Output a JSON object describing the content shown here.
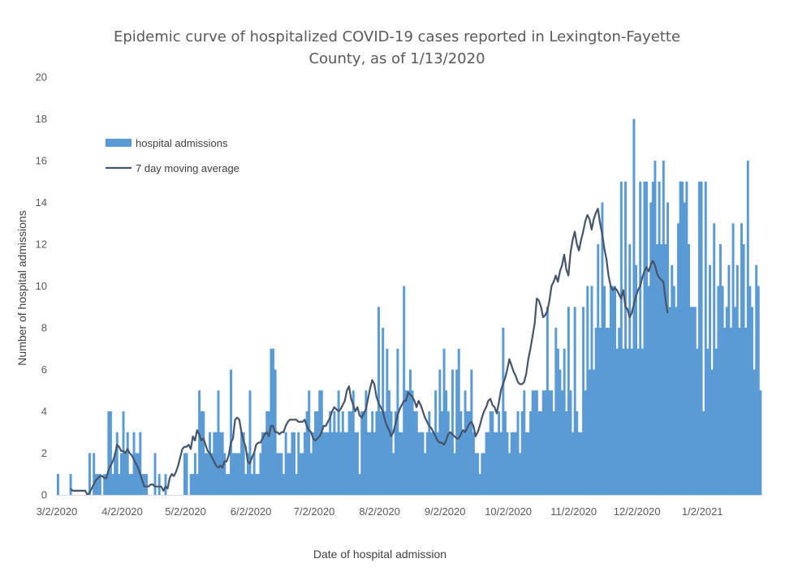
{
  "chart_data": {
    "type": "bar",
    "title_line1": "Epidemic curve of hospitalized COVID-19 cases reported in Lexington-Fayette",
    "title_line2": "County, as of 1/13/2020",
    "xlabel": "Date of hospital admission",
    "ylabel": "Number of hospital admissions",
    "ylim": [
      0,
      20
    ],
    "y_ticks": [
      "0",
      "2",
      "4",
      "6",
      "8",
      "10",
      "12",
      "14",
      "16",
      "18",
      "20"
    ],
    "x_ticks": [
      "3/2/2020",
      "4/2/2020",
      "5/2/2020",
      "6/2/2020",
      "7/2/2020",
      "8/2/2020",
      "9/2/2020",
      "10/2/2020",
      "11/2/2020",
      "12/2/2020",
      "1/2/2021"
    ],
    "x_tick_day_index": [
      0,
      31,
      61,
      92,
      122,
      153,
      184,
      214,
      245,
      275,
      306
    ],
    "start_date": "3/2/2020",
    "grid": false,
    "legend_position": "upper-left",
    "bar_color": "#5b9bd5",
    "line_color": "#44546a",
    "series": [
      {
        "name": "hospital admissions",
        "kind": "bar",
        "values": [
          1,
          0,
          0,
          0,
          0,
          0,
          1,
          0,
          0,
          0,
          0,
          0,
          0,
          0,
          0,
          2,
          0,
          2,
          1,
          1,
          1,
          0,
          1,
          1,
          4,
          4,
          1,
          2,
          3,
          1,
          2,
          4,
          2,
          3,
          1,
          1,
          3,
          2,
          2,
          3,
          1,
          1,
          1,
          0,
          0,
          0,
          2,
          0,
          1,
          0,
          0,
          1,
          0,
          0,
          0,
          0,
          0,
          0,
          0,
          0,
          2,
          2,
          0,
          1,
          1,
          2,
          1,
          5,
          4,
          4,
          2,
          2,
          3,
          2,
          3,
          3,
          5,
          3,
          3,
          2,
          1,
          1,
          6,
          2,
          2,
          2,
          2,
          3,
          3,
          1,
          2,
          5,
          1,
          2,
          1,
          1,
          2,
          3,
          3,
          4,
          4,
          7,
          7,
          6,
          2,
          2,
          2,
          1,
          3,
          2,
          2,
          3,
          3,
          1,
          3,
          2,
          2,
          3,
          4,
          5,
          2,
          3,
          4,
          4,
          5,
          5,
          3,
          3,
          3,
          4,
          3,
          4,
          3,
          5,
          3,
          4,
          3,
          3,
          4,
          4,
          5,
          3,
          3,
          1,
          4,
          4,
          5,
          3,
          3,
          4,
          3,
          4,
          9,
          4,
          8,
          4,
          7,
          5,
          4,
          2,
          4,
          7,
          3,
          3,
          10,
          5,
          5,
          6,
          5,
          4,
          4,
          3,
          3,
          3,
          2,
          3,
          4,
          3,
          3,
          5,
          3,
          6,
          4,
          7,
          5,
          4,
          3,
          6,
          2,
          6,
          7,
          4,
          3,
          5,
          4,
          4,
          6,
          3,
          2,
          2,
          1,
          2,
          2,
          3,
          3,
          4,
          4,
          3,
          3,
          4,
          3,
          8,
          4,
          3,
          2,
          3,
          3,
          3,
          4,
          2,
          4,
          5,
          3,
          3,
          4,
          5,
          5,
          5,
          4,
          4,
          5,
          5,
          9,
          5,
          5,
          4,
          8,
          7,
          6,
          5,
          7,
          4,
          9,
          5,
          3,
          9,
          4,
          3,
          3,
          9,
          5,
          10,
          6,
          10,
          6,
          8,
          12,
          8,
          14,
          10,
          8,
          8,
          10,
          10,
          10,
          7,
          8,
          15,
          7,
          15,
          7,
          12,
          7,
          18,
          11,
          7,
          15,
          7,
          15,
          15,
          10,
          14,
          15,
          16,
          12,
          15,
          12,
          16,
          12,
          14,
          9,
          11,
          10,
          9,
          13,
          15,
          15,
          14,
          15,
          12,
          9,
          9,
          9,
          7,
          15,
          15,
          4,
          15,
          7,
          11,
          6,
          13,
          7,
          10,
          12,
          10,
          8,
          9,
          11,
          8,
          13,
          9,
          11,
          8,
          13,
          12,
          8,
          16,
          10,
          9,
          6,
          11,
          10,
          5
        ]
      },
      {
        "name": "7 day moving average",
        "kind": "line",
        "start_index": 6,
        "values": [
          0.3,
          0.2,
          0.2,
          0.2,
          0.2,
          0.2,
          0.2,
          0.2,
          0.0,
          0.1,
          0.3,
          0.5,
          0.7,
          0.8,
          0.9,
          0.9,
          0.8,
          0.8,
          1.2,
          1.4,
          1.6,
          1.9,
          2.4,
          2.3,
          2.1,
          2.1,
          2.0,
          2.2,
          2.0,
          1.9,
          1.7,
          1.5,
          1.3,
          1.0,
          0.7,
          0.4,
          0.4,
          0.4,
          0.5,
          0.5,
          0.4,
          0.4,
          0.4,
          0.4,
          0.2,
          0.4,
          0.3,
          0.8,
          1.0,
          0.9,
          1.1,
          1.4,
          1.8,
          2.2,
          2.3,
          2.3,
          2.4,
          2.2,
          2.8,
          2.6,
          3.1,
          2.9,
          2.6,
          2.7,
          2.4,
          2.1,
          2.0,
          1.8,
          1.6,
          1.4,
          1.3,
          1.4,
          1.3,
          1.6,
          1.6,
          1.9,
          2.5,
          2.7,
          3.6,
          3.7,
          3.6,
          3.0,
          2.6,
          2.3,
          1.6,
          1.5,
          1.8,
          2.0,
          2.4,
          2.5,
          2.5,
          2.7,
          2.9,
          3.0,
          2.8,
          3.3,
          3.3,
          3.0,
          3.0,
          2.9,
          3.0,
          3.0,
          3.3,
          3.5,
          3.6,
          3.6,
          3.6,
          3.6,
          3.5,
          3.5,
          3.5,
          3.6,
          3.3,
          3.1,
          3.0,
          2.7,
          2.6,
          2.7,
          2.8,
          3.0,
          3.3,
          3.3,
          3.5,
          3.7,
          4.0,
          4.2,
          4.1,
          4.0,
          4.1,
          4.3,
          4.5,
          5.0,
          5.2,
          4.6,
          4.3,
          4.0,
          4.2,
          3.8,
          3.7,
          3.9,
          4.1,
          4.6,
          5.1,
          5.5,
          5.3,
          4.7,
          4.4,
          4.2,
          4.0,
          3.6,
          3.3,
          3.1,
          2.8,
          3.0,
          3.4,
          3.8,
          4.1,
          4.3,
          4.5,
          4.5,
          4.9,
          4.8,
          4.7,
          4.5,
          4.2,
          4.5,
          4.3,
          4.0,
          3.7,
          3.5,
          3.3,
          3.2,
          3.0,
          2.8,
          2.6,
          2.5,
          2.5,
          2.4,
          2.6,
          2.9,
          3.0,
          2.9,
          2.8,
          2.7,
          2.7,
          2.9,
          3.1,
          3.0,
          3.2,
          3.4,
          3.5,
          3.3,
          2.8,
          3.0,
          3.3,
          3.7,
          4.0,
          4.2,
          4.5,
          4.6,
          4.3,
          4.2,
          3.9,
          4.4,
          5.0,
          5.3,
          5.6,
          6.0,
          6.5,
          6.2,
          5.9,
          5.7,
          5.4,
          5.3,
          5.3,
          5.4,
          5.8,
          6.5,
          7.0,
          7.6,
          8.2,
          9.4,
          9.3,
          9.0,
          8.5,
          8.6,
          8.8,
          9.3,
          10.0,
          10.2,
          10.5,
          10.2,
          10.7,
          11.0,
          11.5,
          10.8,
          10.5,
          11.6,
          12.2,
          12.6,
          12.0,
          11.7,
          12.2,
          12.6,
          13.1,
          13.4,
          13.2,
          12.7,
          13.2,
          13.5,
          13.7,
          13.0,
          12.5,
          11.8,
          11.3,
          10.5,
          10.0,
          9.8,
          9.9,
          9.8,
          9.6,
          9.4,
          9.8,
          9.0,
          8.9,
          8.5,
          8.7,
          9.1,
          9.5,
          9.8,
          10.0,
          10.4,
          10.7,
          10.9,
          10.7,
          11.0,
          11.2,
          11.0,
          10.6,
          10.4,
          10.3,
          10.2,
          9.4,
          8.7
        ]
      }
    ]
  }
}
